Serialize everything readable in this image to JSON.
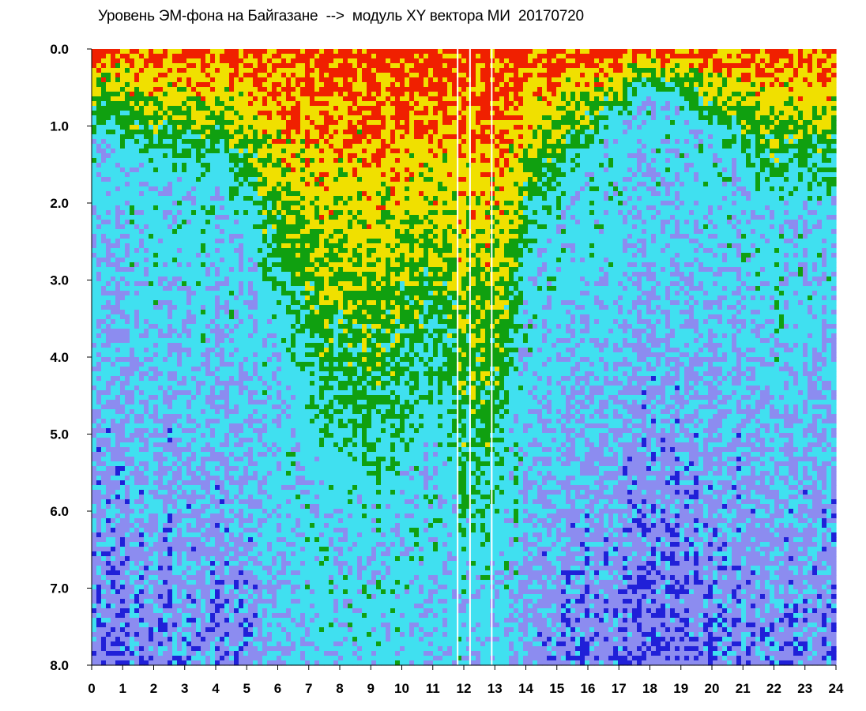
{
  "chart_data": {
    "type": "heatmap",
    "title": "Уровень ЭМ-фона на Байгазане  -->  модуль XY вектора МИ  20170720",
    "xlabel": "",
    "ylabel": "",
    "xlim": [
      0,
      24
    ],
    "ylim": [
      0,
      8
    ],
    "y_inverted": true,
    "x_ticks": [
      "0",
      "1",
      "2",
      "3",
      "4",
      "5",
      "6",
      "7",
      "8",
      "9",
      "10",
      "11",
      "12",
      "13",
      "14",
      "15",
      "16",
      "17",
      "18",
      "19",
      "20",
      "21",
      "22",
      "23",
      "24"
    ],
    "y_ticks": [
      "0.0",
      "1.0",
      "2.0",
      "3.0",
      "4.0",
      "5.0",
      "6.0",
      "7.0",
      "8.0"
    ],
    "grid": false,
    "legend": "none",
    "color_scale": [
      "#2020d8",
      "#8c8cf0",
      "#40e0f0",
      "#10a010",
      "#f0e000",
      "#f02000",
      "#ffffff"
    ],
    "intensity_columns": {
      "x": [
        0,
        1,
        2,
        3,
        4,
        5,
        6,
        7,
        8,
        9,
        10,
        11,
        12,
        13,
        14,
        15,
        16,
        17,
        18,
        19,
        20,
        21,
        22,
        23,
        24
      ],
      "level_depth": [
        1.3,
        1.6,
        1.9,
        2.0,
        2.0,
        3.0,
        4.5,
        6.0,
        6.8,
        7.0,
        6.5,
        5.5,
        8.0,
        8.0,
        3.5,
        2.5,
        1.7,
        1.2,
        0.7,
        0.9,
        1.4,
        1.9,
        2.4,
        2.4,
        2.4
      ]
    },
    "bright_lines": [
      11.8,
      12.2,
      12.9
    ]
  }
}
